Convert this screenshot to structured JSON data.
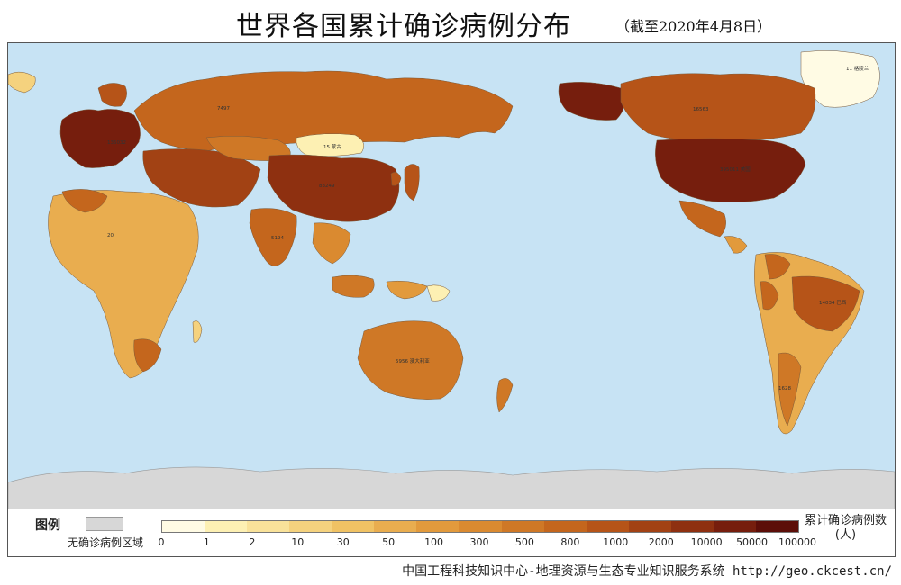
{
  "header": {
    "title": "世界各国累计确诊病例分布",
    "date_note": "（截至2020年4月8日）"
  },
  "legend": {
    "title": "图例",
    "no_data_label": "无确诊病例区域",
    "no_data_color": "#d7d7d7",
    "unit_line1": "累计确诊病例数",
    "unit_line2": "(人)",
    "ticks": [
      "0",
      "1",
      "2",
      "10",
      "30",
      "50",
      "100",
      "300",
      "500",
      "800",
      "1000",
      "2000",
      "10000",
      "50000",
      "100000"
    ],
    "colors": [
      "#fffbe4",
      "#fdf0b3",
      "#f9e29a",
      "#f5d27e",
      "#f0c264",
      "#e9ad4f",
      "#e29a3c",
      "#da8a30",
      "#cf7826",
      "#c4661d",
      "#b65418",
      "#a24214",
      "#8e3010",
      "#761e0d",
      "#5c0e08"
    ]
  },
  "footer": {
    "credit": "中国工程科技知识中心-地理资源与生态专业知识服务系统 http://geo.ckcest.cn/"
  },
  "map": {
    "ocean_color": "#c7e3f4",
    "land_labels": [
      "蒙古",
      "格陵兰",
      "澳大利亚",
      "巴西",
      "美国",
      "中国",
      "俄罗斯",
      "印度",
      "加拿大",
      "阿根廷",
      "新西兰"
    ]
  }
}
